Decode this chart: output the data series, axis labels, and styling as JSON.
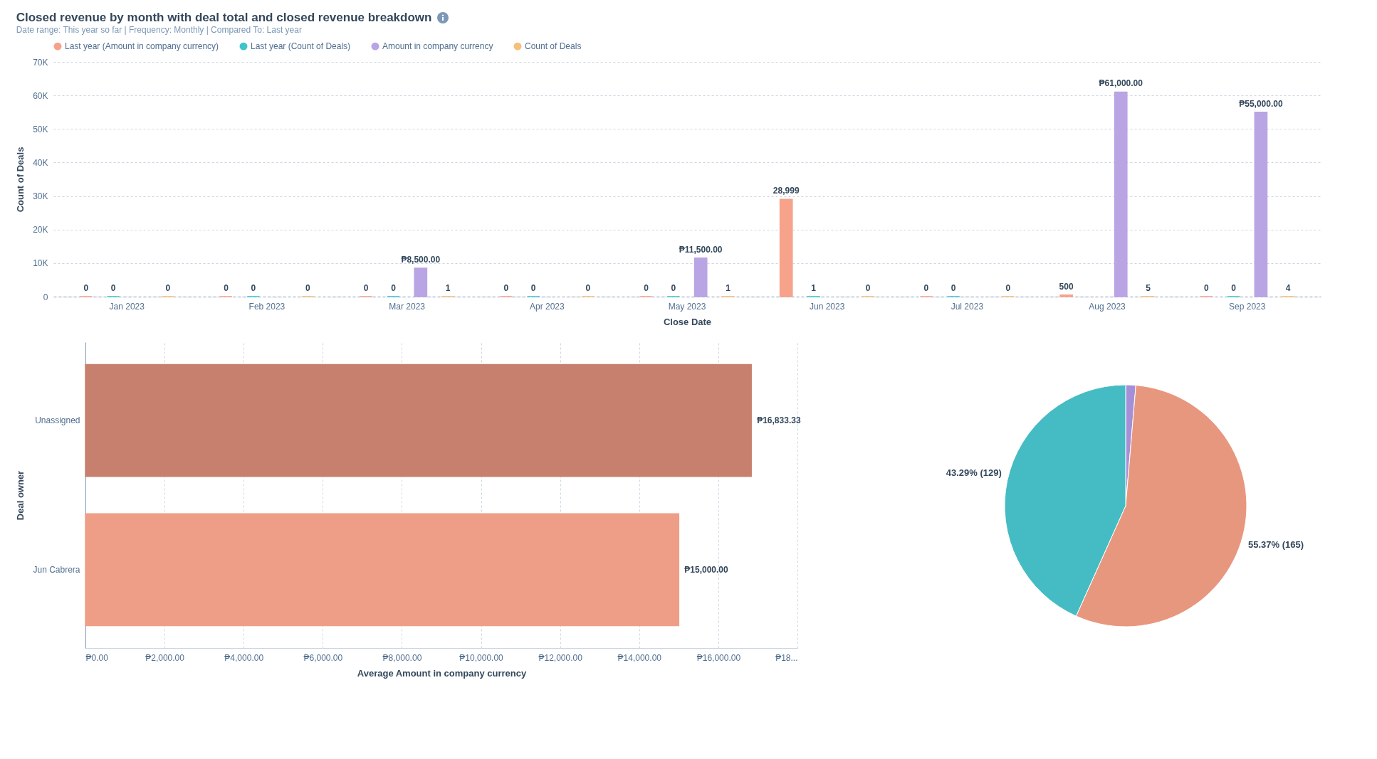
{
  "chart_data": [
    {
      "type": "bar",
      "title": "Closed revenue by month with deal total and closed revenue breakdown",
      "subtitle": "Date range: This year so far | Frequency: Monthly | Compared To: Last year",
      "xlabel": "Close Date",
      "ylabel": "Count of Deals",
      "categories": [
        "Jan 2023",
        "Feb 2023",
        "Mar 2023",
        "Apr 2023",
        "May 2023",
        "Jun 2023",
        "Jul 2023",
        "Aug 2023",
        "Sep 2023"
      ],
      "series": [
        {
          "name": "Last year (Amount in company currency)",
          "color": "#f7a28a",
          "values": [
            0,
            0,
            0,
            0,
            0,
            28999,
            0,
            500,
            0
          ],
          "value_labels": [
            "0",
            "0",
            "0",
            "0",
            "0",
            "28,999",
            "0",
            "500",
            "0"
          ]
        },
        {
          "name": "Last year (Count of Deals)",
          "color": "#3fc3cc",
          "values": [
            0,
            0,
            0,
            0,
            0,
            1,
            0,
            null,
            0
          ],
          "value_labels": [
            "0",
            "0",
            "0",
            "0",
            "0",
            "1",
            "0",
            null,
            "0"
          ]
        },
        {
          "name": "Amount in company currency",
          "color": "#b9a4e4",
          "values": [
            null,
            null,
            8500,
            null,
            11500,
            null,
            null,
            61000,
            55000
          ],
          "value_labels": [
            null,
            null,
            "₱8,500.00",
            null,
            "₱11,500.00",
            null,
            null,
            "₱61,000.00",
            "₱55,000.00"
          ]
        },
        {
          "name": "Count of Deals",
          "color": "#f5c07a",
          "values": [
            0,
            0,
            1,
            0,
            1,
            0,
            0,
            5,
            4
          ],
          "value_labels": [
            "0",
            "0",
            "1",
            "0",
            "1",
            "0",
            "0",
            "5",
            "4"
          ]
        }
      ],
      "ylim": [
        0,
        70000
      ],
      "yticks": [
        0,
        {
          "value": 10000,
          "label": "10K"
        },
        {
          "value": 20000,
          "label": "20K"
        },
        {
          "value": 30000,
          "label": "30K"
        },
        {
          "value": 40000,
          "label": "40K"
        },
        {
          "value": 50000,
          "label": "50K"
        },
        {
          "value": 60000,
          "label": "60K"
        },
        {
          "value": 70000,
          "label": "70K"
        }
      ],
      "grid": "y",
      "legend": "top"
    },
    {
      "type": "bar",
      "orientation": "horizontal",
      "xlabel": "Average Amount in company currency",
      "ylabel": "Deal owner",
      "categories": [
        "Unassigned",
        "Jun Cabrera"
      ],
      "values": [
        16833.33,
        15000
      ],
      "colors": [
        "#c7806d",
        "#ee9e87"
      ],
      "value_labels": [
        "₱16,833.33",
        "₱15,000.00"
      ],
      "xlim": [
        0,
        18000
      ],
      "xticks": [
        {
          "value": 0,
          "label": "₱0.00"
        },
        {
          "value": 2000,
          "label": "₱2,000.00"
        },
        {
          "value": 4000,
          "label": "₱4,000.00"
        },
        {
          "value": 6000,
          "label": "₱6,000.00"
        },
        {
          "value": 8000,
          "label": "₱8,000.00"
        },
        {
          "value": 10000,
          "label": "₱10,000.00"
        },
        {
          "value": 12000,
          "label": "₱12,000.00"
        },
        {
          "value": 14000,
          "label": "₱14,000.00"
        },
        {
          "value": 16000,
          "label": "₱16,000.00"
        },
        {
          "value": 18000,
          "label": "₱18..."
        }
      ],
      "grid": "x"
    },
    {
      "type": "pie",
      "categories": [
        null,
        null,
        null
      ],
      "values": [
        4,
        165,
        129
      ],
      "colors": [
        "#a58fd6",
        "#e8977f",
        "#45bcc3"
      ],
      "value_labels": [
        null,
        "55.37% (165)",
        "43.29% (129)"
      ]
    }
  ]
}
